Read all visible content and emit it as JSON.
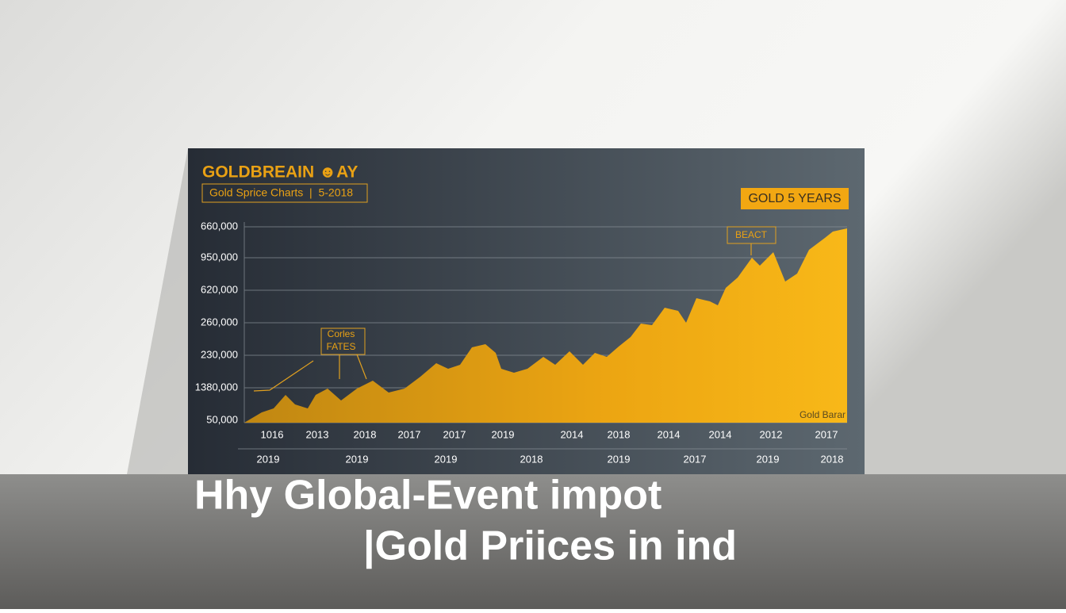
{
  "board": {
    "title": "GOLDBREAIN ☻AY",
    "subtitle": "Gold Sprice Charts  |  5-2018",
    "badge": "GOLD 5 YEARS",
    "y_labels": [
      "660,000",
      "950,000",
      "620,000",
      "260,000",
      "230,000",
      "1380,000",
      "50,000"
    ],
    "x_labels_top": [
      "1016",
      "2013",
      "2018",
      "2017",
      "2017",
      "2019",
      "2014",
      "2018",
      "2014",
      "2014",
      "2012",
      "2017"
    ],
    "x_labels_bottom": [
      "2019",
      "2019",
      "2019",
      "2018",
      "2019",
      "2017",
      "2019",
      "2018"
    ],
    "annotation_left": [
      "Corles",
      "FATES"
    ],
    "annotation_right": "BEACT",
    "corner_note": "Gold Barar"
  },
  "headline": [
    "Hhy Global-Event impot",
    "|Gold Priices in ind"
  ]
}
